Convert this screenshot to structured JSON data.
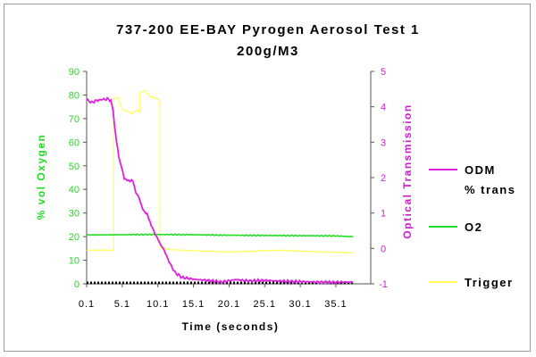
{
  "chart_data": {
    "type": "line",
    "title": "737-200 EE-BAY Pyrogen Aerosol Test 1",
    "subtitle": "200g/M3",
    "xlabel": "Time (seconds)",
    "ylabel_left": "% vol Oxygen",
    "ylabel_right": "Optical Transmission",
    "x_ticks": [
      "0.1",
      "5.1",
      "10.1",
      "15.1",
      "20.1",
      "25.1",
      "30.1",
      "35.1"
    ],
    "x_range": [
      0.1,
      40
    ],
    "y_left_ticks": [
      "0",
      "10",
      "20",
      "30",
      "40",
      "50",
      "60",
      "70",
      "80",
      "90"
    ],
    "y_left_range": [
      0,
      90
    ],
    "y_right_ticks": [
      "-1",
      "0",
      "1",
      "2",
      "3",
      "4",
      "5"
    ],
    "y_right_range": [
      -1,
      5
    ],
    "legend_position": "right",
    "colors": {
      "odm": "#dd22dd",
      "o2": "#22dd22",
      "trigger": "#ffff55",
      "left_axis": "#22dd22",
      "right_axis": "#cc22cc",
      "baseline": "#000000"
    },
    "series": [
      {
        "name": "ODM % trans",
        "label_lines": [
          "ODM",
          "% trans"
        ],
        "axis": "right",
        "x": [
          0.1,
          0.8,
          1.5,
          2.2,
          3.0,
          3.5,
          3.8,
          4.0,
          4.3,
          4.6,
          5.0,
          5.4,
          5.8,
          6.2,
          6.6,
          7.0,
          7.4,
          7.8,
          8.2,
          8.6,
          9.0,
          9.5,
          10.0,
          10.5,
          11.0,
          11.5,
          12.0,
          12.5,
          13.5,
          14.5,
          15.5,
          17.0,
          19.0,
          21.0,
          23.0,
          25.0,
          28.0,
          31.0,
          34.0,
          36.0,
          37.5
        ],
        "values": [
          4.2,
          4.12,
          4.18,
          4.2,
          4.22,
          4.18,
          3.9,
          3.5,
          3.0,
          2.6,
          2.3,
          1.95,
          1.95,
          1.9,
          1.9,
          1.6,
          1.45,
          1.2,
          1.05,
          0.95,
          0.75,
          0.5,
          0.3,
          0.1,
          -0.05,
          -0.3,
          -0.5,
          -0.68,
          -0.82,
          -0.85,
          -0.88,
          -0.9,
          -0.95,
          -0.88,
          -0.92,
          -0.9,
          -0.93,
          -0.94,
          -0.96,
          -0.95,
          -0.95
        ]
      },
      {
        "name": "O2",
        "label_lines": [
          "O2"
        ],
        "axis": "left",
        "x": [
          0.1,
          5.0,
          10.0,
          15.0,
          20.0,
          25.0,
          30.0,
          35.0,
          37.5
        ],
        "values": [
          20.7,
          20.8,
          20.9,
          20.8,
          20.6,
          20.5,
          20.4,
          20.3,
          20.0
        ]
      },
      {
        "name": "Trigger",
        "label_lines": [
          "Trigger"
        ],
        "axis": "right",
        "x": [
          0.1,
          3.9,
          3.9,
          4.4,
          4.5,
          5.0,
          5.5,
          6.0,
          6.5,
          7.0,
          7.6,
          7.6,
          8.2,
          9.0,
          9.6,
          10.2,
          10.4,
          10.4,
          13.0,
          20.0,
          27.0,
          33.0,
          37.5
        ],
        "values": [
          -0.05,
          -0.05,
          4.25,
          4.25,
          4.25,
          3.95,
          3.9,
          3.85,
          3.8,
          3.9,
          3.85,
          4.4,
          4.45,
          4.3,
          4.25,
          4.2,
          4.05,
          0.0,
          -0.05,
          -0.1,
          -0.05,
          -0.1,
          -0.12
        ]
      },
      {
        "name": "",
        "axis": "left",
        "x": [
          0.1,
          37.5
        ],
        "values": [
          0,
          0
        ]
      }
    ]
  }
}
